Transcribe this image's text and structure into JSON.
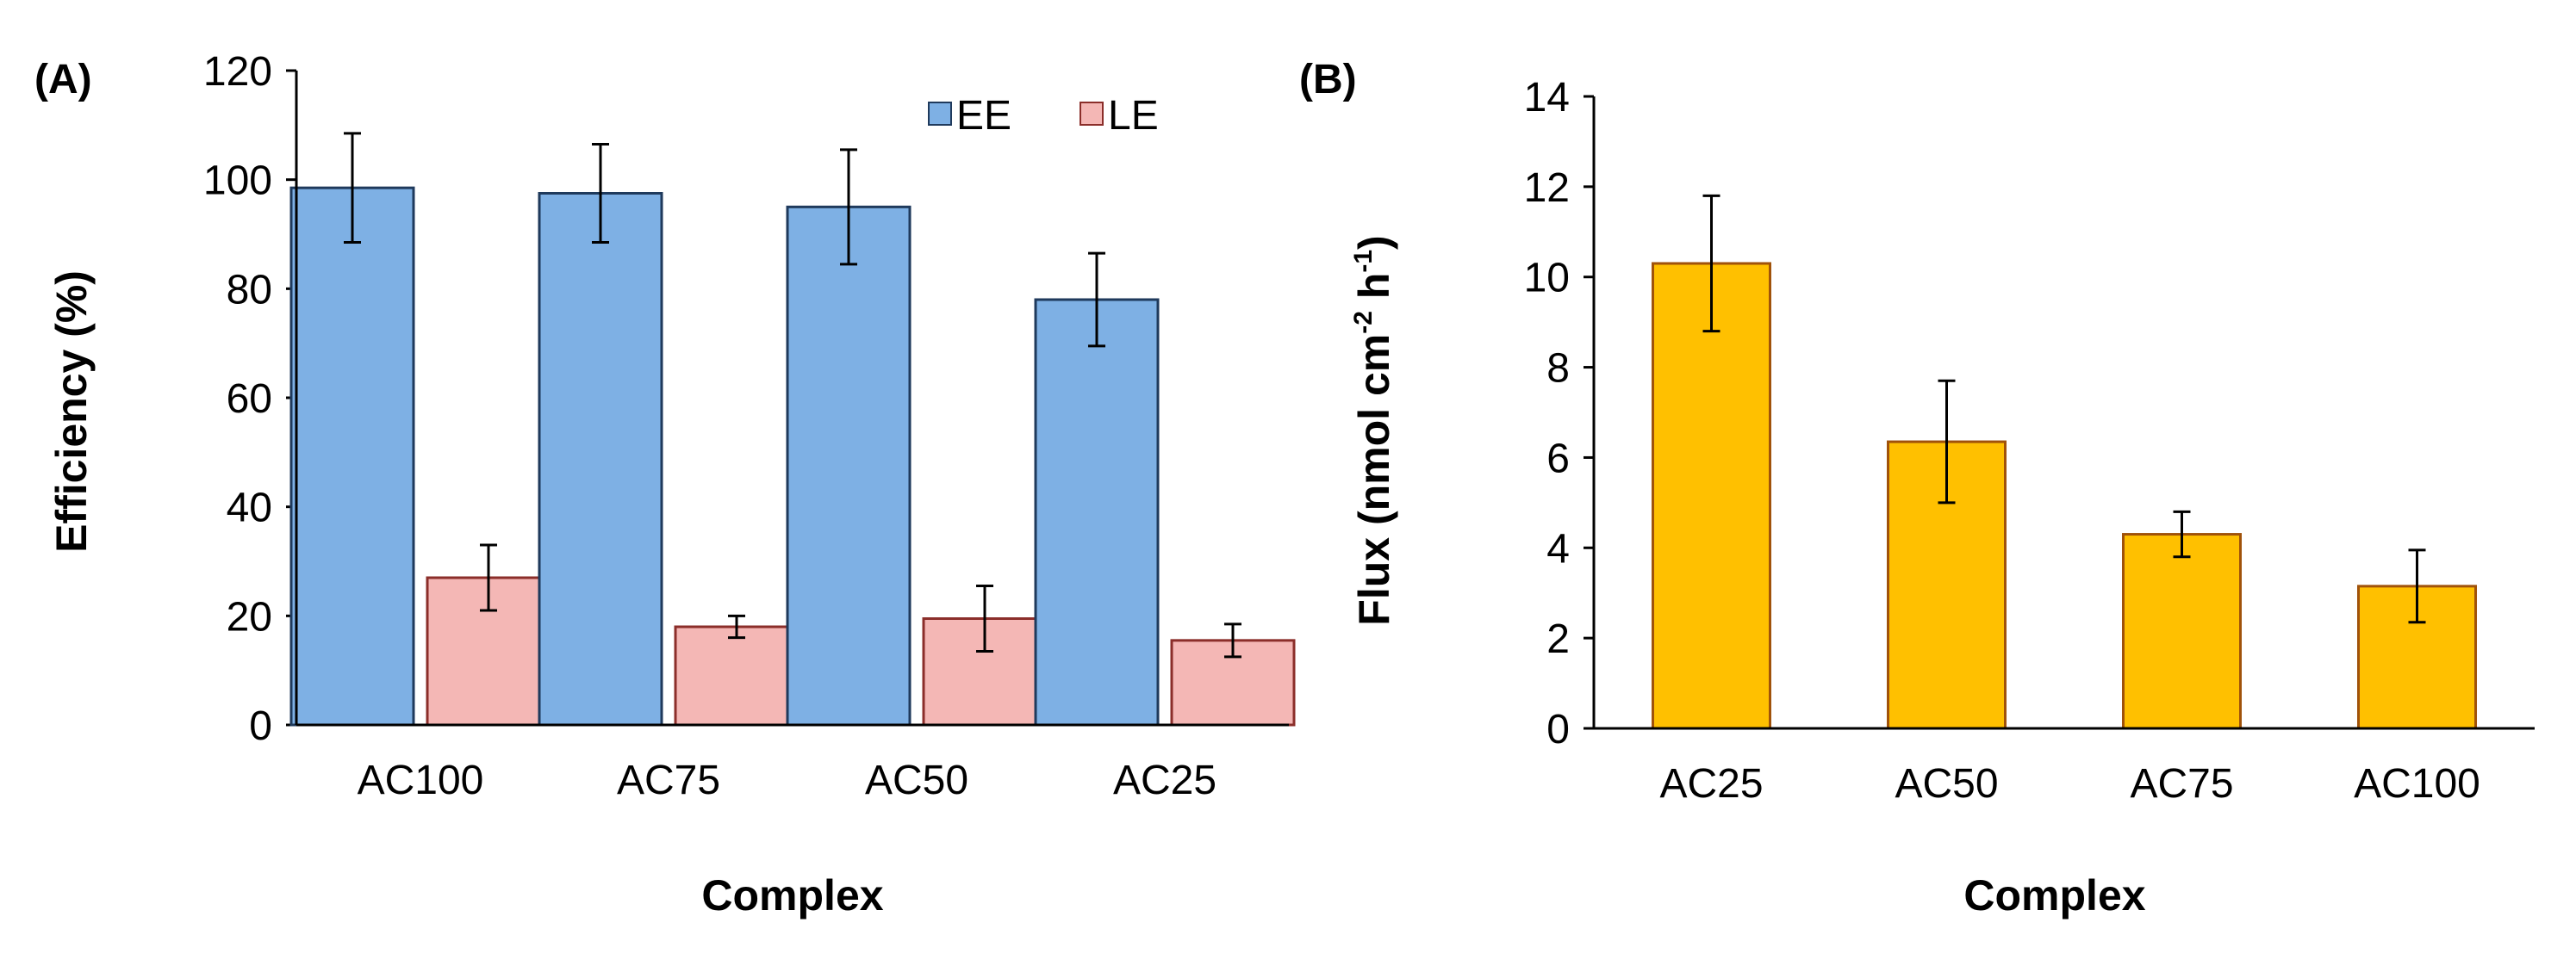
{
  "chart_data": [
    {
      "type": "bar",
      "panel_label": "(A)",
      "categories": [
        "AC100",
        "AC75",
        "AC50",
        "AC25"
      ],
      "series": [
        {
          "name": "EE",
          "values": [
            98.5,
            97.5,
            95.0,
            78.0
          ],
          "errors": [
            10.0,
            9.0,
            10.5,
            8.5
          ],
          "color": "#7EB0E4",
          "stroke": "#1F3A5C"
        },
        {
          "name": "LE",
          "values": [
            27.0,
            18.0,
            19.5,
            15.5
          ],
          "errors": [
            6.0,
            2.0,
            6.0,
            3.0
          ],
          "color": "#F4B7B5",
          "stroke": "#8B2E2A"
        }
      ],
      "ylabel": "Efficiency (%)",
      "xlabel": "Complex",
      "ylim": [
        0,
        120
      ],
      "yticks": [
        0,
        20,
        40,
        60,
        80,
        100,
        120
      ],
      "legend_position": "top-right",
      "grid": false
    },
    {
      "type": "bar",
      "panel_label": "(B)",
      "categories": [
        "AC25",
        "AC50",
        "AC75",
        "AC100"
      ],
      "series": [
        {
          "values": [
            10.3,
            6.35,
            4.3,
            3.15
          ],
          "errors": [
            1.5,
            1.35,
            0.5,
            0.8
          ],
          "color": "#FFC000",
          "stroke": "#A0520A"
        }
      ],
      "ylabel_parts": [
        "Flux (nmol cm",
        "-2",
        " h",
        "-1",
        ")"
      ],
      "xlabel": "Complex",
      "ylim": [
        0,
        14
      ],
      "yticks": [
        0,
        2,
        4,
        6,
        8,
        10,
        12,
        14
      ],
      "grid": false
    }
  ]
}
